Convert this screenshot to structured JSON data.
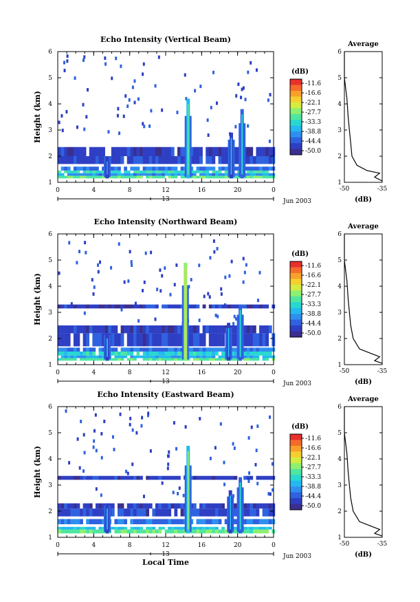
{
  "chart_data": [
    {
      "type": "heatmap",
      "title": "Echo Intensity (Vertical Beam)",
      "ylabel": "Height (km)",
      "x_ticks": [
        "0",
        "4",
        "8",
        "12",
        "16",
        "20",
        "0"
      ],
      "y_ticks": [
        "1",
        "2",
        "3",
        "4",
        "5",
        "6"
      ],
      "ylim": [
        1,
        6
      ],
      "xlim": [
        0,
        24
      ],
      "date_tick": "13",
      "date_label": "Jun 2003",
      "colorbar": {
        "unit": "(dB)",
        "ticks": [
          "-11.6",
          "-16.6",
          "-22.1",
          "-27.7",
          "-33.3",
          "-38.8",
          "-44.4",
          "-50.0"
        ]
      },
      "average_profile": {
        "title": "Average",
        "xlabel": "(dB)",
        "x_ticks": [
          "-50",
          "-35"
        ],
        "xlim": [
          -50,
          -35
        ],
        "y_ticks": [
          "1",
          "2",
          "3",
          "4",
          "5",
          "6"
        ]
      },
      "bands": [
        {
          "y0": 1.15,
          "y1": 1.25,
          "dB": -30
        },
        {
          "y0": 1.25,
          "y1": 1.35,
          "dB": -40
        },
        {
          "y0": 1.35,
          "y1": 1.45,
          "dB": -33
        },
        {
          "y0": 1.45,
          "y1": 1.6,
          "dB": -42
        },
        {
          "y0": 1.7,
          "y1": 2.0,
          "dB": -46
        },
        {
          "y0": 2.0,
          "y1": 2.35,
          "dB": -47
        }
      ],
      "plumes": [
        {
          "t": 14.5,
          "top": 4.2,
          "dB": -30
        },
        {
          "t": 20.5,
          "top": 3.8,
          "dB": -35
        },
        {
          "t": 19.3,
          "top": 2.9,
          "dB": -38
        },
        {
          "t": 5.5,
          "top": 2.0,
          "dB": -40
        }
      ],
      "profile": [
        [
          -50,
          6
        ],
        [
          -50,
          5
        ],
        [
          -49,
          4.2
        ],
        [
          -48.5,
          3.5
        ],
        [
          -48,
          3
        ],
        [
          -47.5,
          2.5
        ],
        [
          -47,
          2
        ],
        [
          -45,
          1.65
        ],
        [
          -41,
          1.45
        ],
        [
          -36,
          1.35
        ],
        [
          -38,
          1.2
        ],
        [
          -35,
          1.05
        ]
      ]
    },
    {
      "type": "heatmap",
      "title": "Echo Intensity (Northward Beam)",
      "ylabel": "Height (km)",
      "x_ticks": [
        "0",
        "4",
        "8",
        "12",
        "16",
        "20",
        "0"
      ],
      "y_ticks": [
        "1",
        "2",
        "3",
        "4",
        "5",
        "6"
      ],
      "ylim": [
        1,
        6
      ],
      "xlim": [
        0,
        24
      ],
      "date_tick": "13",
      "date_label": "Jun 2003",
      "colorbar": {
        "unit": "(dB)",
        "ticks": [
          "-11.6",
          "-16.6",
          "-22.1",
          "-27.7",
          "-33.3",
          "-38.8",
          "-44.4",
          "-50.0"
        ]
      },
      "average_profile": {
        "title": "Average",
        "xlabel": "(dB)",
        "x_ticks": [
          "-50",
          "-35"
        ],
        "xlim": [
          -50,
          -35
        ],
        "y_ticks": [
          "1",
          "2",
          "3",
          "4",
          "5",
          "6"
        ]
      },
      "bands": [
        {
          "y0": 1.15,
          "y1": 1.25,
          "dB": -30
        },
        {
          "y0": 1.25,
          "y1": 1.35,
          "dB": -38
        },
        {
          "y0": 1.35,
          "y1": 1.5,
          "dB": -34
        },
        {
          "y0": 1.5,
          "y1": 1.65,
          "dB": -42
        },
        {
          "y0": 1.7,
          "y1": 2.2,
          "dB": -46
        },
        {
          "y0": 2.2,
          "y1": 2.5,
          "dB": -47
        },
        {
          "y0": 3.15,
          "y1": 3.3,
          "dB": -47
        }
      ],
      "plumes": [
        {
          "t": 14.2,
          "top": 4.9,
          "dB": -20
        },
        {
          "t": 20.3,
          "top": 3.3,
          "dB": -35
        },
        {
          "t": 19.0,
          "top": 2.6,
          "dB": -38
        },
        {
          "t": 5.5,
          "top": 2.2,
          "dB": -38
        }
      ],
      "profile": [
        [
          -50,
          6
        ],
        [
          -50,
          5
        ],
        [
          -49,
          4.2
        ],
        [
          -48.5,
          3.5
        ],
        [
          -48,
          3
        ],
        [
          -47.5,
          2.5
        ],
        [
          -46.5,
          2
        ],
        [
          -44,
          1.6
        ],
        [
          -40,
          1.45
        ],
        [
          -36,
          1.3
        ],
        [
          -38,
          1.15
        ],
        [
          -35,
          1.05
        ]
      ]
    },
    {
      "type": "heatmap",
      "title": "Echo Intensity (Eastward Beam)",
      "ylabel": "Height (km)",
      "x_ticks": [
        "0",
        "4",
        "8",
        "12",
        "16",
        "20",
        "0"
      ],
      "y_ticks": [
        "1",
        "2",
        "3",
        "4",
        "5",
        "6"
      ],
      "ylim": [
        1,
        6
      ],
      "xlim": [
        0,
        24
      ],
      "date_tick": "13",
      "date_label": "Jun 2003",
      "xlabel": "Local Time",
      "colorbar": {
        "unit": "(dB)",
        "ticks": [
          "-11.6",
          "-16.6",
          "-22.1",
          "-27.7",
          "-33.3",
          "-38.8",
          "-44.4",
          "-50.0"
        ]
      },
      "average_profile": {
        "title": "Average",
        "xlabel": "(dB)",
        "x_ticks": [
          "-50",
          "-35"
        ],
        "xlim": [
          -50,
          -35
        ],
        "y_ticks": [
          "1",
          "2",
          "3",
          "4",
          "5",
          "6"
        ]
      },
      "bands": [
        {
          "y0": 1.15,
          "y1": 1.3,
          "dB": -30
        },
        {
          "y0": 1.3,
          "y1": 1.4,
          "dB": -36
        },
        {
          "y0": 1.5,
          "y1": 1.7,
          "dB": -42
        },
        {
          "y0": 1.8,
          "y1": 2.1,
          "dB": -46
        },
        {
          "y0": 2.1,
          "y1": 2.3,
          "dB": -47
        },
        {
          "y0": 3.2,
          "y1": 3.35,
          "dB": -47
        }
      ],
      "plumes": [
        {
          "t": 14.5,
          "top": 4.5,
          "dB": -28
        },
        {
          "t": 20.3,
          "top": 3.3,
          "dB": -35
        },
        {
          "t": 19.2,
          "top": 2.8,
          "dB": -38
        },
        {
          "t": 5.5,
          "top": 2.3,
          "dB": -38
        }
      ],
      "profile": [
        [
          -50,
          6
        ],
        [
          -50,
          5
        ],
        [
          -49,
          4.2
        ],
        [
          -48.5,
          3.5
        ],
        [
          -48,
          3
        ],
        [
          -47.5,
          2.5
        ],
        [
          -46.5,
          2
        ],
        [
          -44,
          1.6
        ],
        [
          -40,
          1.45
        ],
        [
          -36,
          1.3
        ],
        [
          -38,
          1.15
        ],
        [
          -35,
          1.05
        ]
      ]
    }
  ]
}
